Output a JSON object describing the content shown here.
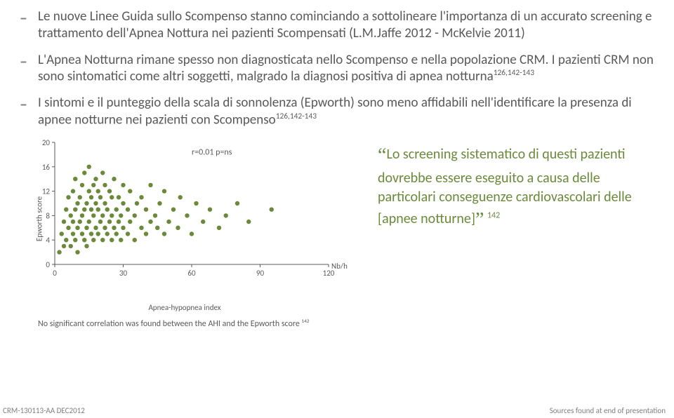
{
  "bullets": [
    "Le nuove Linee Guida sullo Scompenso stanno cominciando a sottolineare l'importanza di un accurato screening e trattamento dell'Apnea Nottura nei pazienti Scompensati (L.M.Jaffe 2012 - McKelvie 2011)",
    "L'Apnea Notturna rimane spesso non diagnosticata nello Scompenso e nella popolazione CRM. I pazienti CRM non sono sintomatici come altri soggetti, malgrado la diagnosi positiva di apnea notturna",
    "I sintomi e il punteggio della scala di sonnolenza (Epworth) sono meno affidabili nell'identificare la presenza di apnee notturne nei pazienti con Scompenso"
  ],
  "bullets_sup": {
    "1": "126,142-143",
    "2": "126,142-143"
  },
  "quote": {
    "open": "“",
    "close": "”",
    "text": "Lo screening sistematico di questi pazienti dovrebbe essere eseguito a causa delle particolari conseguenze cardiovascolari delle [apnee notturne]",
    "sup": "142"
  },
  "chart": {
    "type": "scatter",
    "ylabel": "Epworth score",
    "xlabel": "Apnea-hypopnea index",
    "xunit": "Nb/h",
    "xlim": [
      0,
      120
    ],
    "ylim": [
      0,
      20
    ],
    "xticks": [
      0,
      30,
      60,
      90,
      120
    ],
    "yticks": [
      0,
      4,
      8,
      12,
      16,
      20
    ],
    "annot": "r=0.01    p=ns",
    "point_color": "#6a8a3a",
    "point_r": 3.2,
    "axis_color": "#595959",
    "tick_fontsize": 11,
    "annot_fontsize": 12,
    "points": [
      [
        2,
        2
      ],
      [
        3,
        5
      ],
      [
        4,
        3
      ],
      [
        4,
        7
      ],
      [
        5,
        4
      ],
      [
        5,
        9
      ],
      [
        6,
        6
      ],
      [
        6,
        11
      ],
      [
        7,
        3
      ],
      [
        7,
        8
      ],
      [
        8,
        5
      ],
      [
        8,
        7
      ],
      [
        8,
        12
      ],
      [
        9,
        4
      ],
      [
        9,
        9
      ],
      [
        9,
        14
      ],
      [
        10,
        6
      ],
      [
        10,
        10
      ],
      [
        10,
        2
      ],
      [
        11,
        7
      ],
      [
        11,
        11
      ],
      [
        12,
        5
      ],
      [
        12,
        8
      ],
      [
        12,
        13
      ],
      [
        13,
        4
      ],
      [
        13,
        9
      ],
      [
        13,
        15
      ],
      [
        14,
        6
      ],
      [
        14,
        10
      ],
      [
        14,
        3
      ],
      [
        15,
        7
      ],
      [
        15,
        12
      ],
      [
        15,
        16
      ],
      [
        16,
        5
      ],
      [
        16,
        9
      ],
      [
        16,
        11
      ],
      [
        17,
        4
      ],
      [
        17,
        8
      ],
      [
        17,
        13
      ],
      [
        18,
        6
      ],
      [
        18,
        10
      ],
      [
        18,
        14
      ],
      [
        19,
        5
      ],
      [
        19,
        9
      ],
      [
        19,
        12
      ],
      [
        20,
        7
      ],
      [
        20,
        11
      ],
      [
        21,
        4
      ],
      [
        21,
        8
      ],
      [
        21,
        15
      ],
      [
        22,
        6
      ],
      [
        22,
        10
      ],
      [
        22,
        13
      ],
      [
        23,
        5
      ],
      [
        23,
        9
      ],
      [
        24,
        7
      ],
      [
        24,
        12
      ],
      [
        25,
        4
      ],
      [
        25,
        8
      ],
      [
        25,
        11
      ],
      [
        26,
        6
      ],
      [
        26,
        14
      ],
      [
        27,
        5
      ],
      [
        27,
        9
      ],
      [
        28,
        7
      ],
      [
        28,
        11
      ],
      [
        29,
        4
      ],
      [
        29,
        8
      ],
      [
        30,
        6
      ],
      [
        30,
        10
      ],
      [
        30,
        13
      ],
      [
        32,
        5
      ],
      [
        32,
        9
      ],
      [
        33,
        7
      ],
      [
        33,
        12
      ],
      [
        35,
        4
      ],
      [
        35,
        8
      ],
      [
        36,
        10
      ],
      [
        38,
        6
      ],
      [
        38,
        11
      ],
      [
        40,
        5
      ],
      [
        40,
        9
      ],
      [
        42,
        7
      ],
      [
        42,
        13
      ],
      [
        44,
        8
      ],
      [
        45,
        6
      ],
      [
        46,
        10
      ],
      [
        48,
        5
      ],
      [
        48,
        12
      ],
      [
        50,
        7
      ],
      [
        52,
        9
      ],
      [
        54,
        6
      ],
      [
        55,
        11
      ],
      [
        58,
        8
      ],
      [
        60,
        5
      ],
      [
        62,
        10
      ],
      [
        65,
        7
      ],
      [
        68,
        9
      ],
      [
        72,
        6
      ],
      [
        75,
        8
      ],
      [
        80,
        10
      ],
      [
        85,
        7
      ],
      [
        95,
        9
      ]
    ]
  },
  "caption": "No significant correlation was found between the AHI and the Epworth score ",
  "caption_sup": "142",
  "footer_left": "CRM-130113-AA DEC2012",
  "footer_right": "Sources found at end of presentation"
}
